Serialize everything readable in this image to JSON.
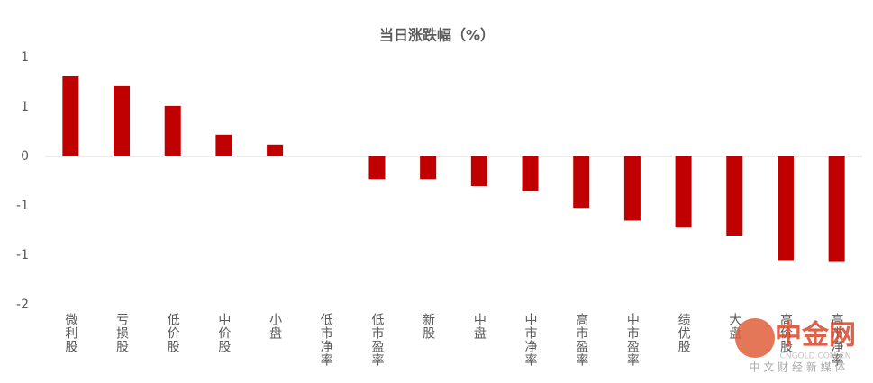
{
  "chart_data": {
    "type": "bar",
    "title": "当日涨跌幅（%）",
    "categories": [
      "微利股",
      "亏损股",
      "低价股",
      "中价股",
      "小盘",
      "低市净率",
      "低市盈率",
      "新股",
      "中盘",
      "中市净率",
      "高市盈率",
      "中市盈率",
      "绩优股",
      "大盘",
      "高价股",
      "高市净率"
    ],
    "values": [
      0.81,
      0.71,
      0.51,
      0.22,
      0.12,
      0,
      -0.23,
      -0.23,
      -0.3,
      -0.35,
      -0.52,
      -0.65,
      -0.72,
      -0.8,
      -1.05,
      -1.06
    ],
    "color": "#c00000",
    "ylim": [
      -1.5,
      1
    ],
    "yticks": [
      1,
      {
        "value": 0.5,
        "label": "1"
      },
      0,
      {
        "value": -0.5,
        "label": "-1"
      },
      -1,
      {
        "value": -1.5,
        "label": "-2"
      }
    ],
    "grid": false
  },
  "watermark": {
    "name": "中金网",
    "url": "CNGOLD.COM.CN",
    "tagline": "中 文 财 经 新 媒 体"
  }
}
